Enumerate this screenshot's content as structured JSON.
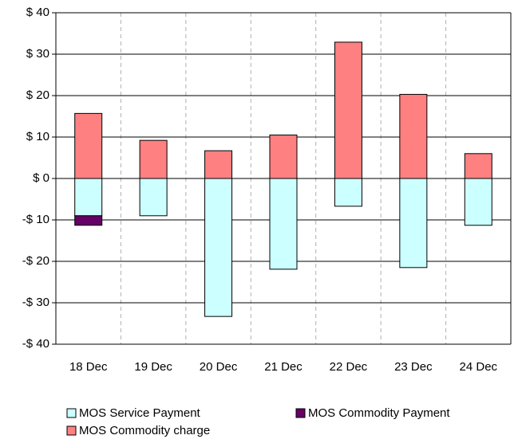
{
  "chart_data": {
    "type": "bar",
    "stacked": true,
    "categories": [
      "18 Dec",
      "19 Dec",
      "20 Dec",
      "21 Dec",
      "22 Dec",
      "23 Dec",
      "24 Dec"
    ],
    "series": [
      {
        "name": "MOS Service Payment",
        "color": "#ccffff",
        "values": [
          -9.0,
          -9.0,
          -33.3,
          -21.9,
          -6.7,
          -21.5,
          -11.3
        ]
      },
      {
        "name": "MOS Commodity Payment",
        "color": "#660066",
        "values": [
          -2.3,
          0,
          0,
          0,
          0,
          0,
          0
        ]
      },
      {
        "name": "MOS Commodity charge",
        "color": "#ff8080",
        "values": [
          15.7,
          9.2,
          6.7,
          10.5,
          32.9,
          20.3,
          6.0
        ]
      }
    ],
    "ylim": [
      -40,
      40
    ],
    "yticks": [
      {
        "value": -40,
        "label": "-$ 40"
      },
      {
        "value": -30,
        "label": "-$ 30"
      },
      {
        "value": -20,
        "label": "-$ 20"
      },
      {
        "value": -10,
        "label": "-$ 10"
      },
      {
        "value": 0,
        "label": "$ 0"
      },
      {
        "value": 10,
        "label": "$ 10"
      },
      {
        "value": 20,
        "label": "$ 20"
      },
      {
        "value": 30,
        "label": "$ 30"
      },
      {
        "value": 40,
        "label": "$ 40"
      }
    ],
    "grid": true
  }
}
